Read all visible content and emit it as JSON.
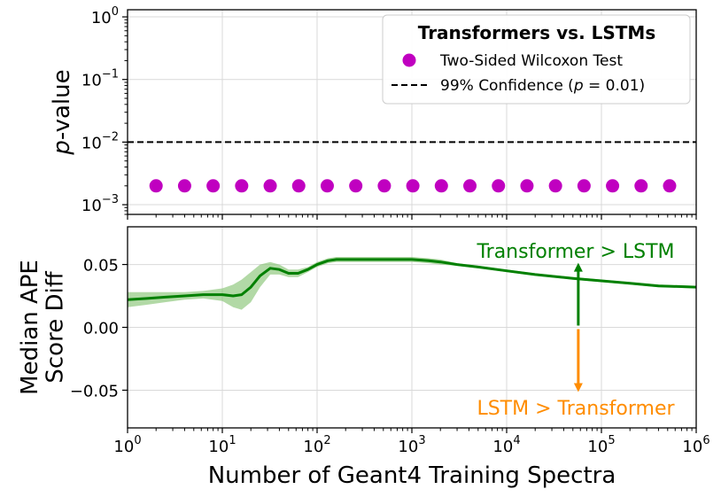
{
  "chart_data": [
    {
      "type": "scatter",
      "xscale": "log",
      "yscale": "log",
      "xlim": [
        1,
        1000000
      ],
      "ylim": [
        0.0007,
        1.3
      ],
      "yticks": [
        {
          "value": 1,
          "base": "10",
          "exp": "0"
        },
        {
          "value": 0.1,
          "base": "10",
          "exp": "−1"
        },
        {
          "value": 0.01,
          "base": "10",
          "exp": "−2"
        },
        {
          "value": 0.001,
          "base": "10",
          "exp": "−3"
        }
      ],
      "ylabel": {
        "italic": "p",
        "rest": "-value"
      },
      "grid": true,
      "legend": {
        "placement": "top-right",
        "title": "Transformers vs. LSTMs",
        "entries": [
          {
            "label": "Two-Sided Wilcoxon Test",
            "marker": "circle",
            "color": "#c000c0"
          },
          {
            "label_pre": "99% Confidence (",
            "label_var": "p",
            "label_post": " = 0.01)",
            "style": "dashed",
            "color": "#000000"
          }
        ]
      },
      "series": [
        {
          "name": "Two-Sided Wilcoxon Test",
          "x": [
            2,
            4,
            8,
            16,
            32,
            64,
            128,
            256,
            512,
            1024,
            2048,
            4096,
            8192,
            16384,
            32768,
            65536,
            131072,
            262144,
            524288
          ],
          "y": [
            0.002,
            0.002,
            0.002,
            0.002,
            0.002,
            0.002,
            0.002,
            0.002,
            0.002,
            0.002,
            0.002,
            0.002,
            0.002,
            0.002,
            0.002,
            0.002,
            0.002,
            0.002,
            0.002
          ],
          "color": "#c000c0"
        }
      ],
      "hline": {
        "y": 0.01,
        "style": "dashed",
        "color": "#000000"
      }
    },
    {
      "type": "line",
      "xscale": "log",
      "xlim": [
        1,
        1000000
      ],
      "ylim": [
        -0.08,
        0.08
      ],
      "yticks": [
        "0.05",
        "0.00",
        "−0.05"
      ],
      "ytick_values": [
        0.05,
        0.0,
        -0.05
      ],
      "xticks": [
        {
          "value": 1,
          "base": "10",
          "exp": "0"
        },
        {
          "value": 10,
          "base": "10",
          "exp": "1"
        },
        {
          "value": 100,
          "base": "10",
          "exp": "2"
        },
        {
          "value": 1000,
          "base": "10",
          "exp": "3"
        },
        {
          "value": 10000,
          "base": "10",
          "exp": "4"
        },
        {
          "value": 100000,
          "base": "10",
          "exp": "5"
        },
        {
          "value": 1000000,
          "base": "10",
          "exp": "6"
        }
      ],
      "xlabel": "Number of Geant4 Training Spectra",
      "ylabel": [
        "Median APE",
        "Score Diff"
      ],
      "grid": true,
      "series": [
        {
          "x": [
            1,
            1.6,
            2.5,
            4,
            6.3,
            10,
            13,
            16,
            20,
            25,
            32,
            40,
            50,
            63,
            80,
            100,
            130,
            160,
            200,
            250,
            320,
            400,
            500,
            630,
            800,
            1000,
            1500,
            2000,
            3000,
            5000,
            10000,
            20000,
            50000,
            100000,
            200000,
            400000,
            1000000
          ],
          "y": [
            0.022,
            0.023,
            0.024,
            0.025,
            0.026,
            0.026,
            0.025,
            0.026,
            0.032,
            0.041,
            0.047,
            0.046,
            0.043,
            0.043,
            0.046,
            0.05,
            0.053,
            0.054,
            0.054,
            0.054,
            0.054,
            0.054,
            0.054,
            0.054,
            0.054,
            0.054,
            0.053,
            0.052,
            0.05,
            0.048,
            0.045,
            0.042,
            0.039,
            0.037,
            0.035,
            0.033,
            0.032
          ],
          "band_half_width": [
            0.006,
            0.005,
            0.004,
            0.003,
            0.003,
            0.005,
            0.009,
            0.012,
            0.012,
            0.009,
            0.005,
            0.004,
            0.003,
            0.003,
            0.002,
            0.002,
            0.002,
            0.002,
            0.002,
            0.002,
            0.002,
            0.002,
            0.002,
            0.002,
            0.002,
            0.002,
            0.002,
            0.002,
            0.001,
            0.001,
            0.001,
            0.001,
            0.001,
            0.001,
            0.001,
            0.001,
            0.001
          ],
          "color": "#008000",
          "band_color": "#7fbf6a"
        }
      ],
      "annotations": [
        {
          "text": "Transformer > LSTM",
          "color": "#008000",
          "arrow": "up",
          "arrow_x": 57000,
          "arrow_from": 0.0,
          "arrow_to": 0.05
        },
        {
          "text": "LSTM > Transformer",
          "color": "#ff8c00",
          "arrow": "down",
          "arrow_x": 57000,
          "arrow_from": 0.0,
          "arrow_to": -0.05
        }
      ]
    }
  ]
}
